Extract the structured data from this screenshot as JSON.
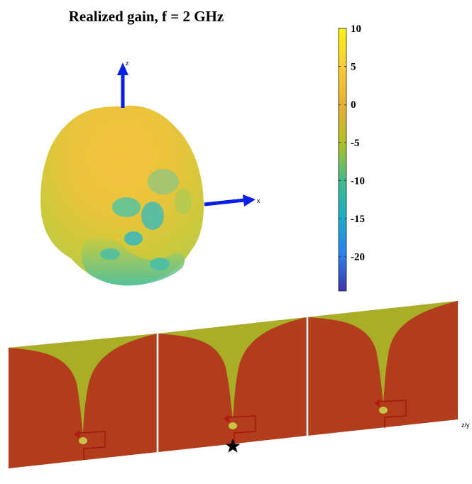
{
  "chart_data": {
    "type": "3d-radiation-pattern",
    "title": "Realized gain, f = 2 GHz",
    "colorbar": {
      "ticks": [
        10,
        5,
        0,
        -5,
        -10,
        -15,
        -20
      ],
      "tick_labels": [
        "10",
        "5",
        "0",
        "-5",
        "-10",
        "-15",
        "-20"
      ],
      "range": [
        -24.5,
        10
      ],
      "colormap": "parula"
    },
    "axes_labels": {
      "x": "x",
      "z": "z",
      "y_corner": "z/y"
    },
    "array": {
      "elements": 3,
      "feed_marker": "star"
    },
    "colors": {
      "arrow": "#0a1ee6",
      "ground": "#b13d1c",
      "metal_yellow": "#a9ae27",
      "feed_dot": "#c9c445",
      "pattern_high": "#f3c53a",
      "pattern_mid": "#c9c83a",
      "pattern_low": "#29b6b8"
    }
  }
}
